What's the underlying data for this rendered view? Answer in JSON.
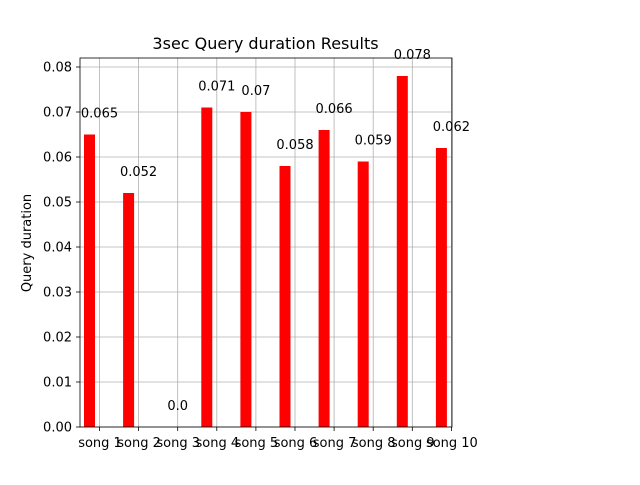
{
  "chart_data": {
    "type": "bar",
    "title": "3sec Query duration Results",
    "xlabel": "",
    "ylabel": "Query duration",
    "categories": [
      "song 1",
      "song 2",
      "song 3",
      "song 4",
      "song 5",
      "song 6",
      "song 7",
      "song 8",
      "song 9",
      "song 10"
    ],
    "values": [
      0.065,
      0.052,
      0.0,
      0.071,
      0.07,
      0.058,
      0.066,
      0.059,
      0.078,
      0.062
    ],
    "data_labels": [
      "0.065",
      "0.052",
      "0.0",
      "0.071",
      "0.07",
      "0.058",
      "0.066",
      "0.059",
      "0.078",
      "0.062"
    ],
    "ylim": [
      0,
      0.082
    ],
    "yticks": [
      0.0,
      0.01,
      0.02,
      0.03,
      0.04,
      0.05,
      0.06,
      0.07,
      0.08
    ],
    "ytick_labels": [
      "0.00",
      "0.01",
      "0.02",
      "0.03",
      "0.04",
      "0.05",
      "0.06",
      "0.07",
      "0.08"
    ],
    "grid": true,
    "bar_color": "#ff0000"
  }
}
